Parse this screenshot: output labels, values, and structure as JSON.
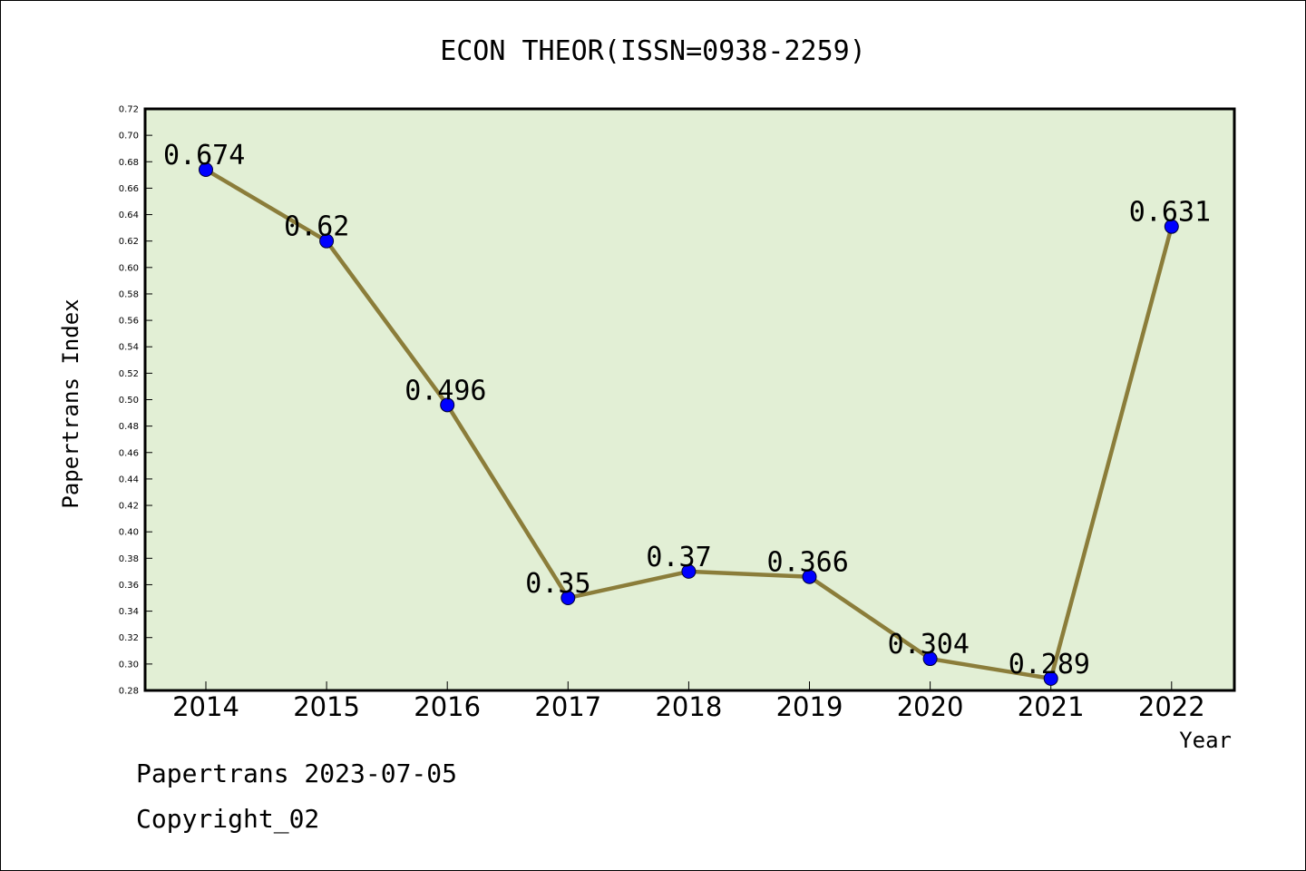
{
  "chart_data": {
    "type": "line",
    "title": "ECON THEOR(ISSN=0938-2259)",
    "xlabel": "Year",
    "ylabel": "Papertrans Index",
    "categories": [
      "2014",
      "2015",
      "2016",
      "2017",
      "2018",
      "2019",
      "2020",
      "2021",
      "2022"
    ],
    "series": [
      {
        "values": [
          0.674,
          0.62,
          0.496,
          0.35,
          0.37,
          0.366,
          0.304,
          0.289,
          0.631
        ],
        "labels": [
          "0.674",
          "0.62",
          "0.496",
          "0.35",
          "0.37",
          "0.366",
          "0.304",
          "0.289",
          "0.631"
        ],
        "line_color": "#8B7D3A",
        "marker_color": "#0000FF"
      }
    ],
    "ylim": [
      0.28,
      0.72
    ],
    "yticks": [
      "0.28",
      "0.30",
      "0.32",
      "0.34",
      "0.36",
      "0.38",
      "0.40",
      "0.42",
      "0.44",
      "0.46",
      "0.48",
      "0.50",
      "0.52",
      "0.54",
      "0.56",
      "0.58",
      "0.60",
      "0.62",
      "0.64",
      "0.66",
      "0.68",
      "0.70",
      "0.72"
    ],
    "plot_background": "#E2EFD5",
    "grid": false,
    "legend": "none"
  },
  "footer": {
    "line1": "Papertrans 2023-07-05",
    "line2": "Copyright_02"
  }
}
